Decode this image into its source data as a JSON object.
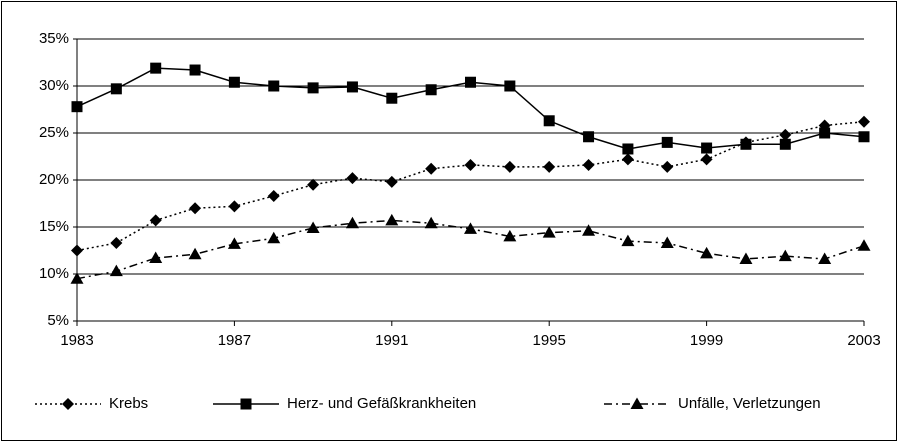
{
  "chart_data": {
    "type": "line",
    "x": [
      1983,
      1984,
      1985,
      1986,
      1987,
      1988,
      1989,
      1990,
      1991,
      1992,
      1993,
      1994,
      1995,
      1996,
      1997,
      1998,
      1999,
      2000,
      2001,
      2002,
      2003
    ],
    "xlim": [
      1983,
      2003
    ],
    "xticks": [
      1983,
      1987,
      1991,
      1995,
      1999,
      2003
    ],
    "ylim": [
      5,
      35
    ],
    "yticks": [
      {
        "value": 5,
        "label": "5%"
      },
      {
        "value": 10,
        "label": "10%"
      },
      {
        "value": 15,
        "label": "15%"
      },
      {
        "value": 20,
        "label": "20%"
      },
      {
        "value": 25,
        "label": "25%"
      },
      {
        "value": 30,
        "label": "30%"
      },
      {
        "value": 35,
        "label": "35%"
      }
    ],
    "grid": true,
    "legend": "bottom",
    "series": [
      {
        "name": "Krebs",
        "color": "#000000",
        "line_style": "dotted",
        "marker": "diamond",
        "values": [
          12.5,
          13.3,
          15.7,
          17.0,
          17.2,
          18.3,
          19.5,
          20.2,
          19.8,
          21.2,
          21.6,
          21.4,
          21.4,
          21.6,
          22.2,
          21.4,
          22.2,
          24.0,
          24.8,
          25.8,
          26.2
        ]
      },
      {
        "name": "Herz- und Gefäßkrankheiten",
        "color": "#000000",
        "line_style": "solid",
        "marker": "square",
        "values": [
          27.8,
          29.7,
          31.9,
          31.7,
          30.4,
          30.0,
          29.8,
          29.9,
          28.7,
          29.6,
          30.4,
          30.0,
          26.3,
          24.6,
          23.3,
          24.0,
          23.4,
          23.8,
          23.8,
          25.0,
          24.6
        ]
      },
      {
        "name": "Unfälle, Verletzungen",
        "color": "#000000",
        "line_style": "dashdot",
        "marker": "triangle",
        "values": [
          9.5,
          10.3,
          11.7,
          12.1,
          13.2,
          13.8,
          14.9,
          15.4,
          15.7,
          15.4,
          14.8,
          14.0,
          14.4,
          14.6,
          13.5,
          13.3,
          12.2,
          11.6,
          11.9,
          11.6,
          13.0
        ]
      }
    ]
  }
}
